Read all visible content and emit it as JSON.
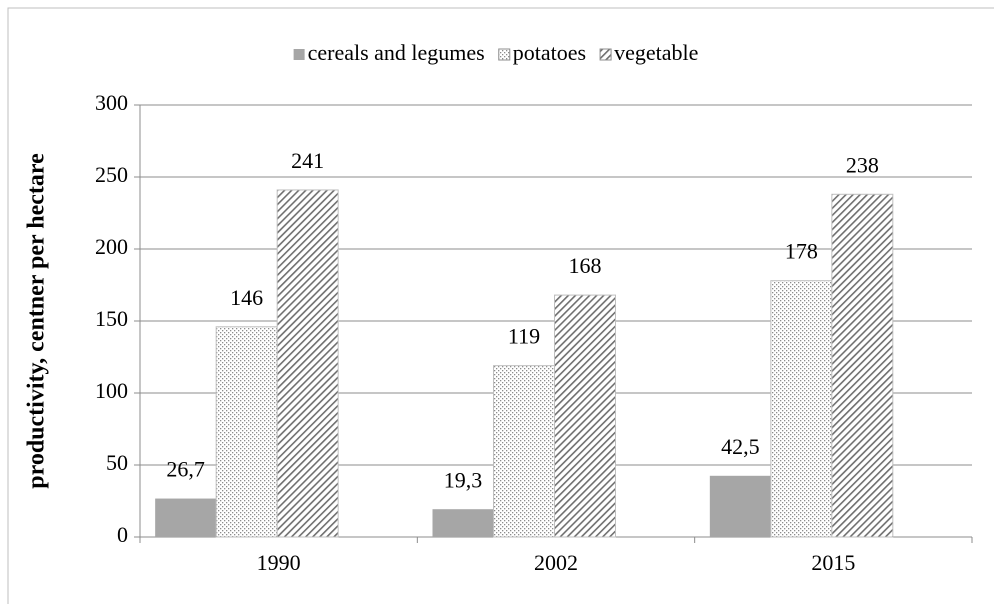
{
  "chart_data": {
    "type": "bar",
    "y_label": "productivity, centner per hectare",
    "categories": [
      "1990",
      "2002",
      "2015"
    ],
    "series": [
      {
        "name": "cereals and legumes",
        "color": "#a6a6a6",
        "pattern": "solid",
        "values": [
          26.7,
          19.3,
          42.5
        ],
        "value_labels": [
          "26,7",
          "19,3",
          "42,5"
        ]
      },
      {
        "name": "potatoes",
        "color": "#8c8c8c",
        "pattern": "dots",
        "values": [
          146,
          119,
          178
        ]
      },
      {
        "name": "vegetable",
        "color": "#7f7f7f",
        "pattern": "hatch",
        "values": [
          241,
          168,
          238
        ]
      }
    ],
    "ylim": [
      0,
      300
    ],
    "yticks": [
      0,
      50,
      100,
      150,
      200,
      250,
      300
    ],
    "grid": true,
    "legend": "top"
  }
}
